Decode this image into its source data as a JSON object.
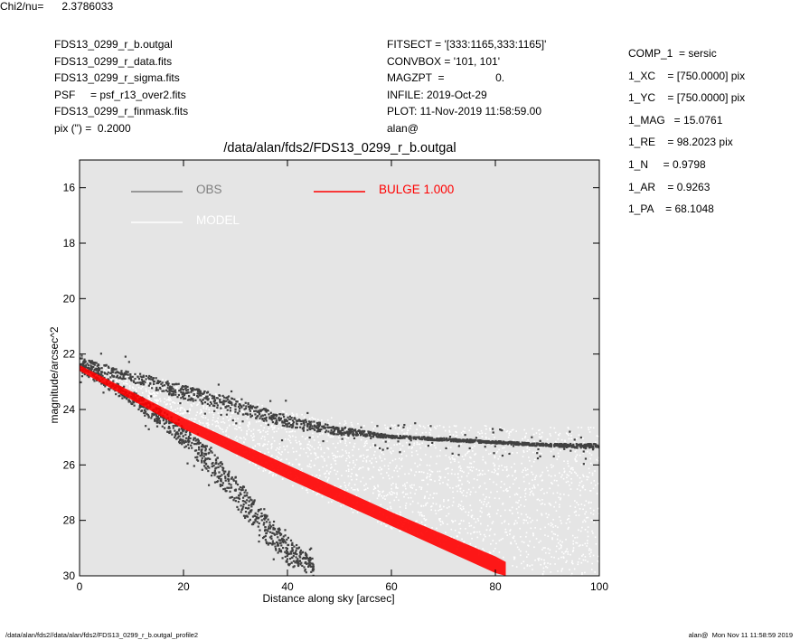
{
  "header_left": [
    "FDS13_0299_r_b.outgal",
    "FDS13_0299_r_data.fits",
    "FDS13_0299_r_sigma.fits",
    "PSF     = psf_r13_over2.fits",
    "FDS13_0299_r_finmask.fits",
    "pix (\") =  0.2000"
  ],
  "header_mid": [
    "FITSECT = '[333:1165,333:1165]'",
    "CONVBOX = '101, 101'",
    "MAGZPT  =                 0.",
    "INFILE: 2019-Oct-29",
    "PLOT: 11-Nov-2019 11:58:59.00",
    "alan@"
  ],
  "params": [
    "COMP_1  = sersic",
    "1_XC    = [750.0000] pix",
    "1_YC    = [750.0000] pix",
    "1_MAG   = 15.0761",
    "1_RE    = 98.2023 pix",
    "1_N     = 0.9798",
    "1_AR    = 0.9263",
    "1_PA    = 68.1048"
  ],
  "chi2_label": "Chi2/nu=",
  "chi2_value": "2.3786033",
  "footer_left": "/data/alan/fds2//data/alan/fds2/FDS13_0299_r_b.outgal_profile2",
  "footer_right": "alan@  Mon Nov 11 11:58:59 2019",
  "chart_data": {
    "type": "scatter",
    "title": "/data/alan/fds2/FDS13_0299_r_b.outgal",
    "xlabel": "Distance along sky [arcsec]",
    "ylabel": "magnitude/arcsec^2",
    "xlim": [
      0,
      100
    ],
    "ylim": [
      30,
      15
    ],
    "y_inverted": true,
    "xticks": [
      0,
      20,
      40,
      60,
      80,
      100
    ],
    "yticks": [
      16,
      18,
      20,
      22,
      24,
      26,
      28,
      30
    ],
    "background": "#e5e5e5",
    "legend": [
      {
        "label": "OBS",
        "color": "#7f7f7f"
      },
      {
        "label": "MODEL",
        "color": "#ffffff"
      },
      {
        "label": "BULGE  1.000",
        "color": "#ff0000"
      }
    ],
    "series": [
      {
        "name": "OBS",
        "color": "#404040",
        "bands": [
          {
            "x": [
              0,
              10,
              20,
              30,
              40,
              50,
              60,
              70,
              80,
              90,
              100
            ],
            "y_low": [
              22.4,
              23.0,
              23.6,
              24.1,
              24.6,
              24.9,
              25.0,
              25.1,
              25.2,
              25.3,
              25.4
            ],
            "y_high": [
              22.1,
              22.6,
              23.1,
              23.6,
              24.2,
              24.6,
              24.9,
              25.0,
              25.1,
              25.2,
              25.2
            ]
          },
          {
            "x": [
              0,
              5,
              10,
              15,
              20,
              25,
              30,
              35,
              40,
              45
            ],
            "y_low": [
              22.6,
              23.2,
              23.8,
              24.5,
              25.3,
              26.3,
              27.5,
              28.7,
              29.6,
              30.0
            ],
            "y_high": [
              22.3,
              22.8,
              23.3,
              23.9,
              24.6,
              25.4,
              26.4,
              27.6,
              28.6,
              29.4
            ]
          }
        ]
      },
      {
        "name": "MODEL",
        "color": "#ffffff",
        "x": [
          0,
          20,
          40,
          60,
          80,
          100
        ],
        "y_center": [
          22.5,
          23.8,
          25.4,
          26.4,
          27.0,
          27.6
        ]
      },
      {
        "name": "BULGE  1.000",
        "color": "#ff0000",
        "x": [
          0,
          20,
          40,
          60,
          80,
          82
        ],
        "y_low": [
          22.6,
          24.7,
          26.5,
          28.2,
          29.9,
          30.0
        ],
        "y_high": [
          22.4,
          24.3,
          26.0,
          27.7,
          29.3,
          29.5
        ]
      }
    ]
  }
}
